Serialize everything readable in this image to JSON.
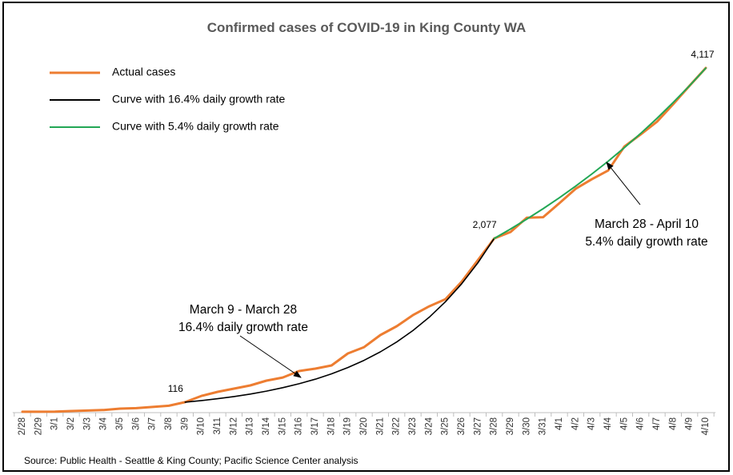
{
  "chart_data": {
    "type": "line",
    "title": "Confirmed cases of COVID-19 in King County WA",
    "source": "Source: Public Health - Seattle & King County; Pacific Science Center analysis",
    "categories": [
      "2/28",
      "2/29",
      "3/1",
      "3/2",
      "3/3",
      "3/4",
      "3/5",
      "3/6",
      "3/7",
      "3/8",
      "3/9",
      "3/10",
      "3/11",
      "3/12",
      "3/13",
      "3/14",
      "3/15",
      "3/16",
      "3/17",
      "3/18",
      "3/19",
      "3/20",
      "3/21",
      "3/22",
      "3/23",
      "3/24",
      "3/25",
      "3/26",
      "3/27",
      "3/28",
      "3/29",
      "3/30",
      "3/31",
      "4/1",
      "4/2",
      "4/3",
      "4/4",
      "4/5",
      "4/6",
      "4/7",
      "4/8",
      "4/9",
      "4/10"
    ],
    "series": [
      {
        "name": "Actual cases",
        "color": "#ed7d31",
        "values": [
          1,
          1,
          2,
          10,
          15,
          22,
          38,
          44,
          58,
          73,
          116,
          191,
          239,
          278,
          316,
          373,
          411,
          488,
          517,
          555,
          699,
          775,
          919,
          1024,
          1158,
          1263,
          1349,
          1560,
          1818,
          2077,
          2153,
          2325,
          2330,
          2498,
          2670,
          2785,
          2890,
          3177,
          3321,
          3474,
          3684,
          3904,
          4117
        ],
        "value_labels": [
          null,
          null,
          null,
          null,
          null,
          null,
          null,
          null,
          null,
          null,
          "116",
          null,
          null,
          null,
          null,
          null,
          null,
          null,
          null,
          null,
          null,
          null,
          null,
          null,
          null,
          null,
          null,
          null,
          null,
          "2,077",
          null,
          null,
          null,
          null,
          null,
          null,
          null,
          null,
          null,
          null,
          null,
          null,
          "4,117"
        ]
      },
      {
        "name": "Curve with 16.4% daily growth rate",
        "color": "#000000",
        "values": [
          null,
          null,
          null,
          null,
          null,
          null,
          null,
          null,
          null,
          null,
          116,
          135,
          157,
          183,
          213,
          248,
          289,
          336,
          391,
          455,
          530,
          617,
          718,
          836,
          973,
          1132,
          1318,
          1534,
          1786,
          2079,
          null,
          null,
          null,
          null,
          null,
          null,
          null,
          null,
          null,
          null,
          null,
          null,
          null
        ]
      },
      {
        "name": "Curve with 5.4% daily growth rate",
        "color": "#22a755",
        "values": [
          null,
          null,
          null,
          null,
          null,
          null,
          null,
          null,
          null,
          null,
          null,
          null,
          null,
          null,
          null,
          null,
          null,
          null,
          null,
          null,
          null,
          null,
          null,
          null,
          null,
          null,
          null,
          null,
          null,
          2077,
          2189,
          2307,
          2432,
          2563,
          2702,
          2848,
          3001,
          3163,
          3334,
          3514,
          3704,
          3904,
          4115
        ]
      }
    ],
    "annotations": [
      {
        "lines": [
          "March 9 - March 28",
          "16.4% daily growth rate"
        ]
      },
      {
        "lines": [
          "March 28 - April 10",
          "5.4% daily growth rate"
        ]
      }
    ]
  }
}
